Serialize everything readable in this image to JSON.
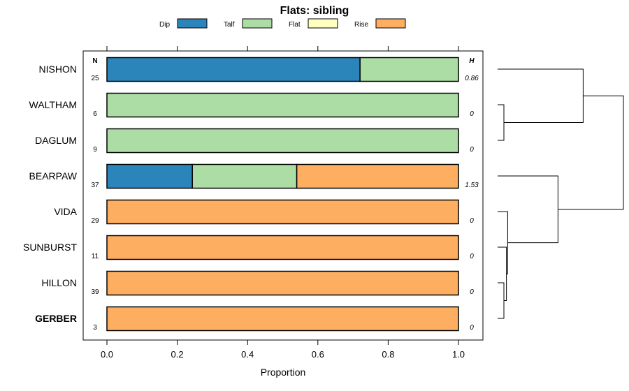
{
  "chart_data": {
    "type": "bar",
    "orientation": "horizontal",
    "stacked": true,
    "title": "Flats: sibling",
    "xlabel": "Proportion",
    "xlim": [
      0,
      1
    ],
    "xticks": [
      "0.0",
      "0.2",
      "0.4",
      "0.6",
      "0.8",
      "1.0"
    ],
    "xtick_values": [
      0,
      0.2,
      0.4,
      0.6,
      0.8,
      1.0
    ],
    "n_header": "N",
    "h_header": "H",
    "legend": [
      {
        "name": "Dip",
        "color": "#2c85ba"
      },
      {
        "name": "Talf",
        "color": "#abdda4"
      },
      {
        "name": "Flat",
        "color": "#ffffbf"
      },
      {
        "name": "Rise",
        "color": "#fdae61"
      }
    ],
    "categories": [
      {
        "name": "NISHON",
        "bold": false,
        "n": "25",
        "h": "0.86",
        "values": [
          0.72,
          0.28,
          0,
          0
        ]
      },
      {
        "name": "WALTHAM",
        "bold": false,
        "n": "6",
        "h": "0",
        "values": [
          0,
          1,
          0,
          0
        ]
      },
      {
        "name": "DAGLUM",
        "bold": false,
        "n": "9",
        "h": "0",
        "values": [
          0,
          1,
          0,
          0
        ]
      },
      {
        "name": "BEARPAW",
        "bold": false,
        "n": "37",
        "h": "1.53",
        "values": [
          0.243,
          0.297,
          0,
          0.46
        ]
      },
      {
        "name": "VIDA",
        "bold": false,
        "n": "29",
        "h": "0",
        "values": [
          0,
          0,
          0,
          1
        ]
      },
      {
        "name": "SUNBURST",
        "bold": false,
        "n": "11",
        "h": "0",
        "values": [
          0,
          0,
          0,
          1
        ]
      },
      {
        "name": "HILLON",
        "bold": false,
        "n": "39",
        "h": "0",
        "values": [
          0,
          0,
          0,
          1
        ]
      },
      {
        "name": "GERBER",
        "bold": true,
        "n": "3",
        "h": "0",
        "values": [
          0,
          0,
          0,
          1
        ]
      }
    ],
    "dendrogram": {
      "leaf_order": [
        "NISHON",
        "WALTHAM",
        "DAGLUM",
        "BEARPAW",
        "VIDA",
        "SUNBURST",
        "HILLON",
        "GERBER"
      ],
      "merges": [
        {
          "a": "WALTHAM",
          "b": "DAGLUM",
          "height": 0.05
        },
        {
          "a": "HILLON",
          "b": "GERBER",
          "height": 0.05
        },
        {
          "a": "SUNBURST",
          "b": "HILLON+GERBER",
          "height": 0.07
        },
        {
          "a": "VIDA",
          "b": "SUNBURST+HILLON+GERBER",
          "height": 0.08
        },
        {
          "a": "NISHON",
          "b": "WALTHAM+DAGLUM",
          "height": 0.68
        },
        {
          "a": "BEARPAW",
          "b": "VIDA+SUNBURST+HILLON+GERBER",
          "height": 0.48
        },
        {
          "a": "NISHON+WALTHAM+DAGLUM",
          "b": "BEARPAW+VIDA+SUNBURST+HILLON+GERBER",
          "height": 1.0
        }
      ]
    }
  }
}
